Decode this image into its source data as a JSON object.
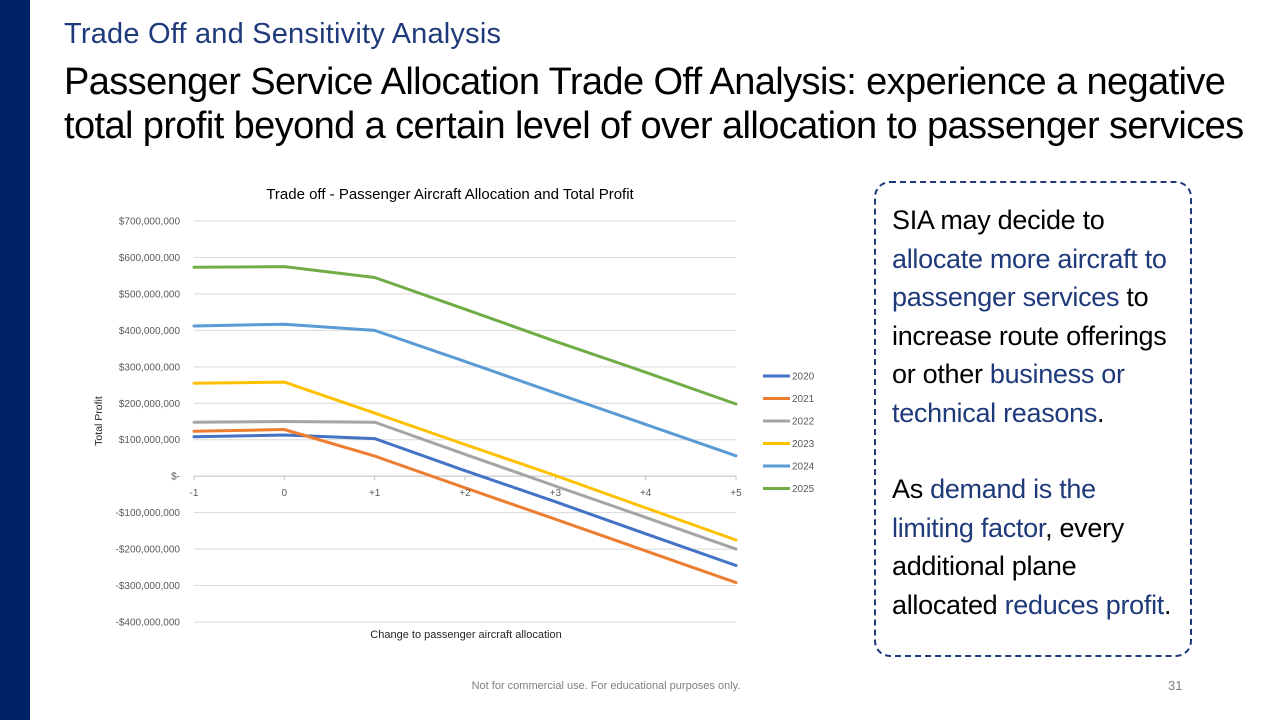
{
  "slide": {
    "kicker": "Trade Off and Sensitivity Analysis",
    "headline": "Passenger Service Allocation Trade Off Analysis: experience a negative total profit beyond a certain level of over allocation to passenger services",
    "footer": "Not for commercial use. For educational purposes only.",
    "page_number": "31",
    "accent_color": "#012169",
    "highlight_color": "#1f3a7a"
  },
  "callout": {
    "p1": [
      {
        "text": "SIA may decide to ",
        "highlight": false
      },
      {
        "text": "allocate more aircraft to passenger services",
        "highlight": true
      },
      {
        "text": " to increase route offerings or other ",
        "highlight": false
      },
      {
        "text": "business or technical reasons",
        "highlight": true
      },
      {
        "text": ".",
        "highlight": false
      }
    ],
    "p2": [
      {
        "text": "As ",
        "highlight": false
      },
      {
        "text": "demand is the limiting factor",
        "highlight": true
      },
      {
        "text": ", every additional plane allocated ",
        "highlight": false
      },
      {
        "text": "reduces profit",
        "highlight": true
      },
      {
        "text": ".",
        "highlight": false
      }
    ]
  },
  "chart_data": {
    "type": "line",
    "title": "Trade off - Passenger Aircraft Allocation and Total Profit",
    "xlabel": "Change to passenger aircraft allocation",
    "ylabel": "Total Profit",
    "x": [
      "-1",
      "0",
      "+1",
      "+2",
      "+3",
      "+4",
      "+5"
    ],
    "ylim": [
      -400000000,
      700000000
    ],
    "yticks": [
      700000000,
      600000000,
      500000000,
      400000000,
      300000000,
      200000000,
      100000000,
      0,
      -100000000,
      -200000000,
      -300000000,
      -400000000
    ],
    "ytick_labels": [
      "$700,000,000",
      "$600,000,000",
      "$500,000,000",
      "$400,000,000",
      "$300,000,000",
      "$200,000,000",
      "$100,000,000",
      "$-",
      "-$100,000,000",
      "-$200,000,000",
      "-$300,000,000",
      "-$400,000,000"
    ],
    "grid": true,
    "legend": "right",
    "series": [
      {
        "name": "2020",
        "color": "#4472C4",
        "values": [
          108000000,
          113000000,
          103000000,
          15000000,
          -70000000,
          -158000000,
          -245000000
        ]
      },
      {
        "name": "2021",
        "color": "#ED7D31",
        "values": [
          123000000,
          128000000,
          55000000,
          -32000000,
          -118000000,
          -205000000,
          -292000000
        ]
      },
      {
        "name": "2022",
        "color": "#A5A5A5",
        "values": [
          148000000,
          150000000,
          148000000,
          60000000,
          -27000000,
          -113000000,
          -200000000
        ]
      },
      {
        "name": "2023",
        "color": "#FFC000",
        "values": [
          255000000,
          258000000,
          173000000,
          87000000,
          2000000,
          -87000000,
          -175000000
        ]
      },
      {
        "name": "2024",
        "color": "#5B9BD5",
        "values": [
          412000000,
          417000000,
          400000000,
          315000000,
          228000000,
          142000000,
          56000000
        ]
      },
      {
        "name": "2025",
        "color": "#70AD47",
        "values": [
          573000000,
          575000000,
          545000000,
          458000000,
          370000000,
          285000000,
          198000000
        ]
      }
    ]
  }
}
